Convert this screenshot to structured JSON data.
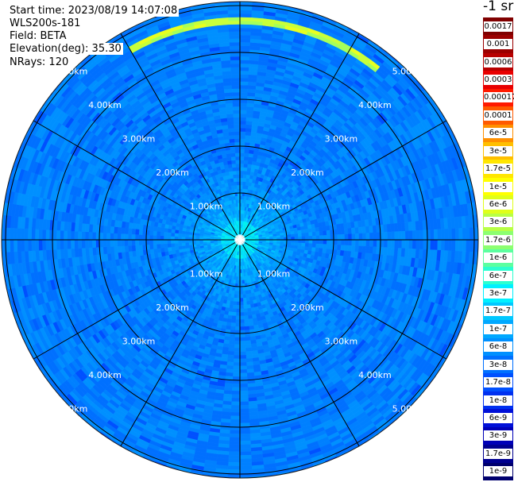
{
  "header": {
    "start_time": "Start time: 2023/08/19 14:07:08",
    "instrument": "WLS200s-181",
    "field": "Field: BETA",
    "elevation": "Elevation(deg): 35.30",
    "nrays": "NRays: 120"
  },
  "colorbar": {
    "title": "-1 sr",
    "levels": [
      {
        "label": "0.0017",
        "color": "#800000"
      },
      {
        "label": "0.001",
        "color": "#9b0000"
      },
      {
        "label": "0.0006",
        "color": "#b80000"
      },
      {
        "label": "0.0003",
        "color": "#e80000"
      },
      {
        "label": "0.00017",
        "color": "#ff1a00"
      },
      {
        "label": "0.0001",
        "color": "#ff5a00"
      },
      {
        "label": "6e-5",
        "color": "#ff8f00"
      },
      {
        "label": "3e-5",
        "color": "#ffbf00"
      },
      {
        "label": "1.7e-5",
        "color": "#ffe600"
      },
      {
        "label": "1e-5",
        "color": "#ffff00"
      },
      {
        "label": "6e-6",
        "color": "#e0ff1a"
      },
      {
        "label": "3e-6",
        "color": "#b8ff45"
      },
      {
        "label": "1.7e-6",
        "color": "#8cff70"
      },
      {
        "label": "1e-6",
        "color": "#5cffa0"
      },
      {
        "label": "6e-7",
        "color": "#2cffd0"
      },
      {
        "label": "3e-7",
        "color": "#00f0ff"
      },
      {
        "label": "1.7e-7",
        "color": "#00c8ff"
      },
      {
        "label": "1e-7",
        "color": "#00a8ff"
      },
      {
        "label": "6e-8",
        "color": "#0090ff"
      },
      {
        "label": "3e-8",
        "color": "#0070ff"
      },
      {
        "label": "1.7e-8",
        "color": "#0050ff"
      },
      {
        "label": "1e-8",
        "color": "#0030f0"
      },
      {
        "label": "6e-9",
        "color": "#0010d8"
      },
      {
        "label": "3e-9",
        "color": "#0000b8"
      },
      {
        "label": "1.7e-9",
        "color": "#000090"
      },
      {
        "label": "1e-9",
        "color": "#00006e"
      }
    ]
  },
  "chart_data": {
    "type": "heatmap",
    "projection": "polar (PPI scan)",
    "field": "BETA",
    "units": "-1 sr",
    "nrays": 120,
    "elevation_deg": 35.3,
    "range_rings_km": [
      1,
      2,
      3,
      4,
      5
    ],
    "range_ring_labels": [
      "1.00km",
      "2.00km",
      "3.00km",
      "4.00km",
      "5.00km"
    ],
    "max_range_km": 6.0,
    "spoke_interval_deg": 30,
    "grid": true,
    "color_scale": "logarithmic",
    "background_level": "1.7e-8 to 3e-8",
    "near_range_level": "1e-7 to 3e-7",
    "features": [
      {
        "description": "enhanced backscatter arc",
        "azimuth_deg": [
          -30,
          40
        ],
        "range_km": [
          5.35,
          5.6
        ],
        "level": "1.7e-6 to 6e-6"
      }
    ]
  },
  "colors": {
    "background": "#ffffff",
    "grid": "#000000"
  }
}
